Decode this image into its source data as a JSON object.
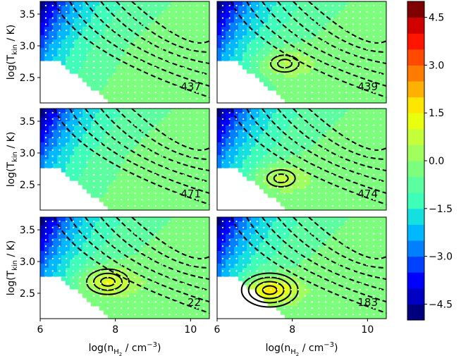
{
  "chart_data": [
    {
      "type": "heatmap",
      "panel_label": "437",
      "row": 0,
      "col": 0,
      "hotspot": null
    },
    {
      "type": "heatmap",
      "panel_label": "439",
      "row": 0,
      "col": 1,
      "hotspot": {
        "x": 7.8,
        "y": 2.72,
        "peak": 0.9
      }
    },
    {
      "type": "heatmap",
      "panel_label": "471",
      "row": 1,
      "col": 0,
      "hotspot": null
    },
    {
      "type": "heatmap",
      "panel_label": "474",
      "row": 1,
      "col": 1,
      "hotspot": {
        "x": 7.7,
        "y": 2.6,
        "peak": 1.0
      }
    },
    {
      "type": "heatmap",
      "panel_label": "22",
      "row": 2,
      "col": 0,
      "hotspot": {
        "x": 7.8,
        "y": 2.68,
        "peak": 1.5
      }
    },
    {
      "type": "heatmap",
      "panel_label": "183",
      "row": 2,
      "col": 1,
      "hotspot": {
        "x": 7.4,
        "y": 2.55,
        "peak": 2.2
      }
    }
  ],
  "axes": {
    "x_range": [
      6,
      10.5
    ],
    "y_range": [
      2.1,
      3.7
    ],
    "x_ticks": [
      "6",
      "8",
      "10"
    ],
    "y_ticks": [
      "2.5",
      "3.0",
      "3.5"
    ],
    "xlabel_main": "log(n",
    "xlabel_sub": "H",
    "xlabel_subsub": "2",
    "xlabel_tail": " / cm",
    "xlabel_sup": "−3",
    "xlabel_close": ")",
    "ylabel_main": "log(T",
    "ylabel_sub": "kin",
    "ylabel_tail": " / K)"
  },
  "colorbar": {
    "range": [
      -5,
      5
    ],
    "ticks": [
      "4.5",
      "3.0",
      "1.5",
      "0.0",
      "−1.5",
      "−3.0",
      "−4.5"
    ],
    "colors": [
      "#00007f",
      "#0000c4",
      "#0000ff",
      "#0040ff",
      "#0080ff",
      "#00b8ff",
      "#15e0e0",
      "#3dffba",
      "#5cffa0",
      "#7cff7c",
      "#a0ff5c",
      "#c4ff3a",
      "#e8ff10",
      "#ffe600",
      "#ffb000",
      "#ff7c00",
      "#ff4a00",
      "#ff1400",
      "#d00000",
      "#7f0000"
    ]
  }
}
